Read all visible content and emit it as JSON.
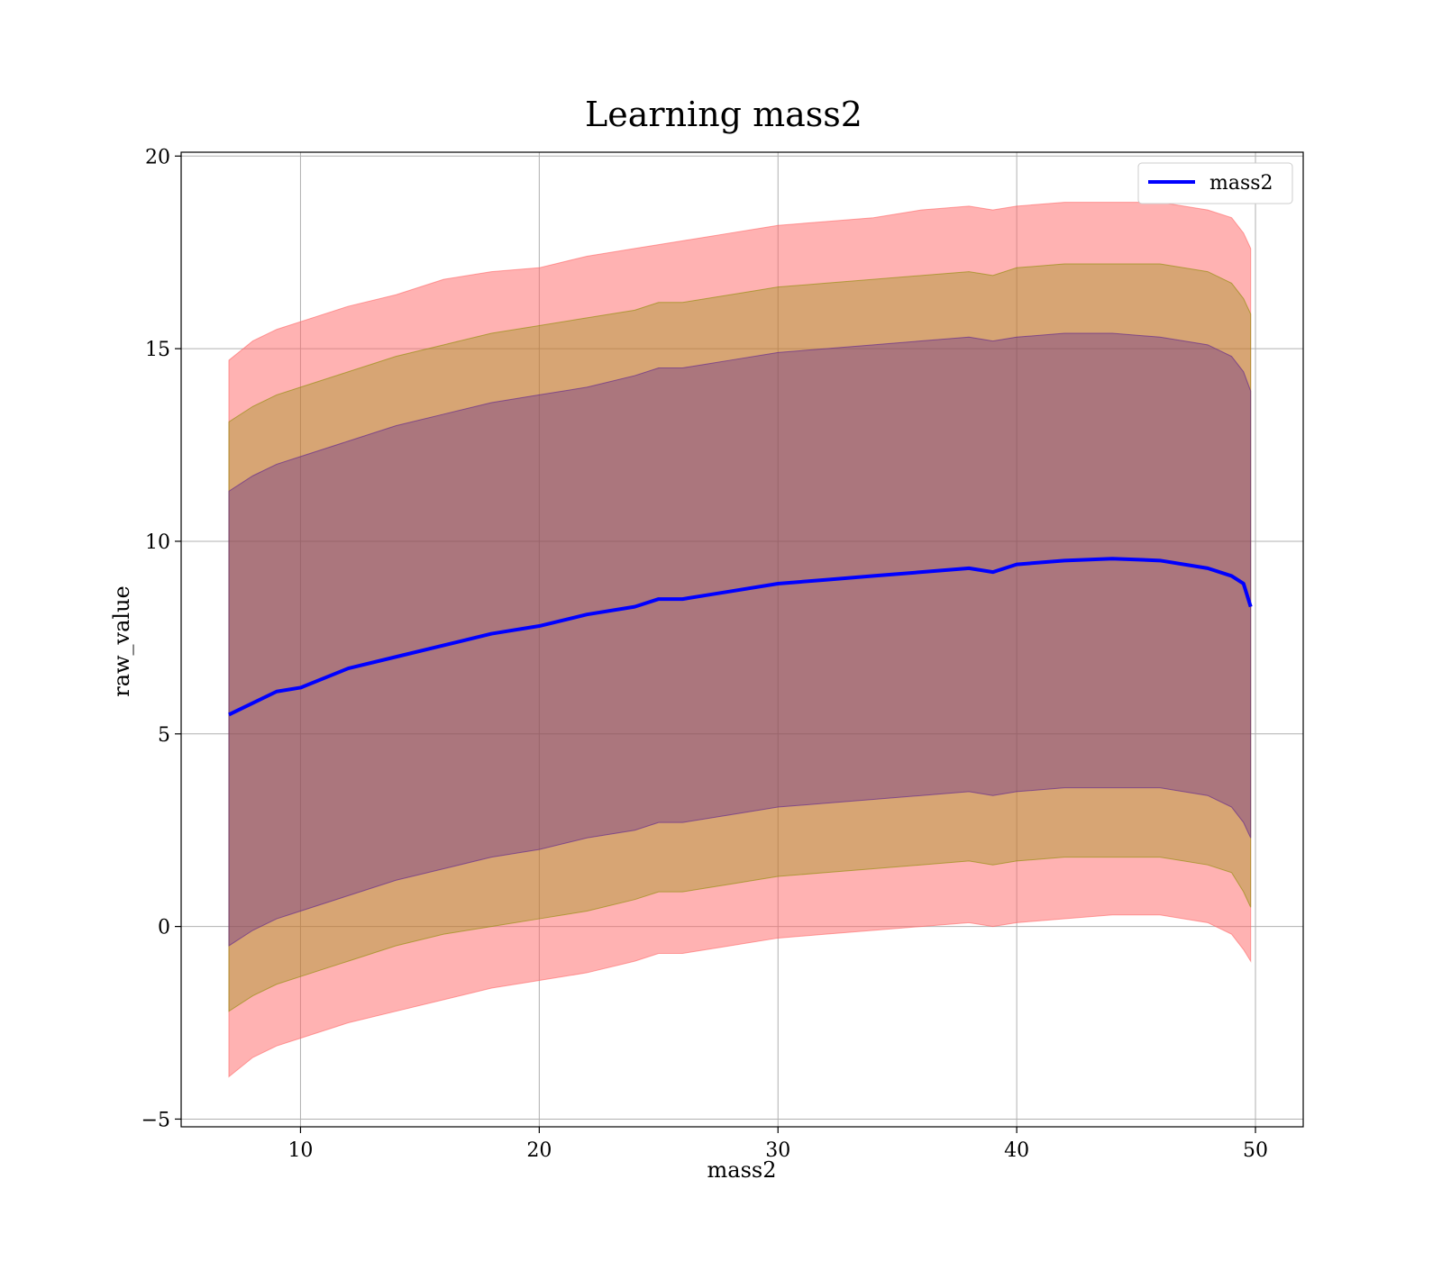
{
  "chart_data": {
    "type": "area",
    "title": "Learning mass2",
    "xlabel": "mass2",
    "ylabel": "raw_value",
    "xlim": [
      5,
      52
    ],
    "ylim": [
      -5.2,
      20.1
    ],
    "xticks": [
      10,
      20,
      30,
      40,
      50
    ],
    "yticks": [
      -5,
      0,
      5,
      10,
      15,
      20
    ],
    "xtick_labels": [
      "10",
      "20",
      "30",
      "40",
      "50"
    ],
    "ytick_labels": [
      "−5",
      "0",
      "5",
      "10",
      "15",
      "20"
    ],
    "grid": true,
    "legend_position": "upper right",
    "x": [
      7,
      8,
      9,
      10,
      12,
      14,
      16,
      18,
      20,
      22,
      24,
      25,
      26,
      27,
      28,
      30,
      32,
      34,
      36,
      38,
      39,
      40,
      42,
      44,
      46,
      48,
      49,
      49.5,
      49.8
    ],
    "series": [
      {
        "name": "mass2",
        "color": "#0000ff",
        "values": [
          5.5,
          5.8,
          6.1,
          6.2,
          6.7,
          7.0,
          7.3,
          7.6,
          7.8,
          8.1,
          8.3,
          8.5,
          8.5,
          8.6,
          8.7,
          8.9,
          9.0,
          9.1,
          9.2,
          9.3,
          9.2,
          9.4,
          9.5,
          9.55,
          9.5,
          9.3,
          9.1,
          8.9,
          8.3
        ]
      }
    ],
    "bands": [
      {
        "color": "#ff6666",
        "opacity": 0.5,
        "lower": [
          -3.9,
          -3.4,
          -3.1,
          -2.9,
          -2.5,
          -2.2,
          -1.9,
          -1.6,
          -1.4,
          -1.2,
          -0.9,
          -0.7,
          -0.7,
          -0.6,
          -0.5,
          -0.3,
          -0.2,
          -0.1,
          0.0,
          0.1,
          0.0,
          0.1,
          0.2,
          0.3,
          0.3,
          0.1,
          -0.2,
          -0.6,
          -0.9
        ],
        "upper": [
          14.7,
          15.2,
          15.5,
          15.7,
          16.1,
          16.4,
          16.8,
          17.0,
          17.1,
          17.4,
          17.6,
          17.7,
          17.8,
          17.9,
          18.0,
          18.2,
          18.3,
          18.4,
          18.6,
          18.7,
          18.6,
          18.7,
          18.8,
          18.8,
          18.8,
          18.6,
          18.4,
          18.0,
          17.6
        ]
      },
      {
        "color": "#8c8c00",
        "opacity": 0.35,
        "lower": [
          -2.2,
          -1.8,
          -1.5,
          -1.3,
          -0.9,
          -0.5,
          -0.2,
          0.0,
          0.2,
          0.4,
          0.7,
          0.9,
          0.9,
          1.0,
          1.1,
          1.3,
          1.4,
          1.5,
          1.6,
          1.7,
          1.6,
          1.7,
          1.8,
          1.8,
          1.8,
          1.6,
          1.4,
          0.9,
          0.5
        ],
        "upper": [
          13.1,
          13.5,
          13.8,
          14.0,
          14.4,
          14.8,
          15.1,
          15.4,
          15.6,
          15.8,
          16.0,
          16.2,
          16.2,
          16.3,
          16.4,
          16.6,
          16.7,
          16.8,
          16.9,
          17.0,
          16.9,
          17.1,
          17.2,
          17.2,
          17.2,
          17.0,
          16.7,
          16.3,
          15.9
        ]
      },
      {
        "color": "#5a2090",
        "opacity": 0.35,
        "lower": [
          -0.5,
          -0.1,
          0.2,
          0.4,
          0.8,
          1.2,
          1.5,
          1.8,
          2.0,
          2.3,
          2.5,
          2.7,
          2.7,
          2.8,
          2.9,
          3.1,
          3.2,
          3.3,
          3.4,
          3.5,
          3.4,
          3.5,
          3.6,
          3.6,
          3.6,
          3.4,
          3.1,
          2.7,
          2.3
        ],
        "upper": [
          11.3,
          11.7,
          12.0,
          12.2,
          12.6,
          13.0,
          13.3,
          13.6,
          13.8,
          14.0,
          14.3,
          14.5,
          14.5,
          14.6,
          14.7,
          14.9,
          15.0,
          15.1,
          15.2,
          15.3,
          15.2,
          15.3,
          15.4,
          15.4,
          15.3,
          15.1,
          14.8,
          14.4,
          13.9
        ]
      }
    ]
  }
}
